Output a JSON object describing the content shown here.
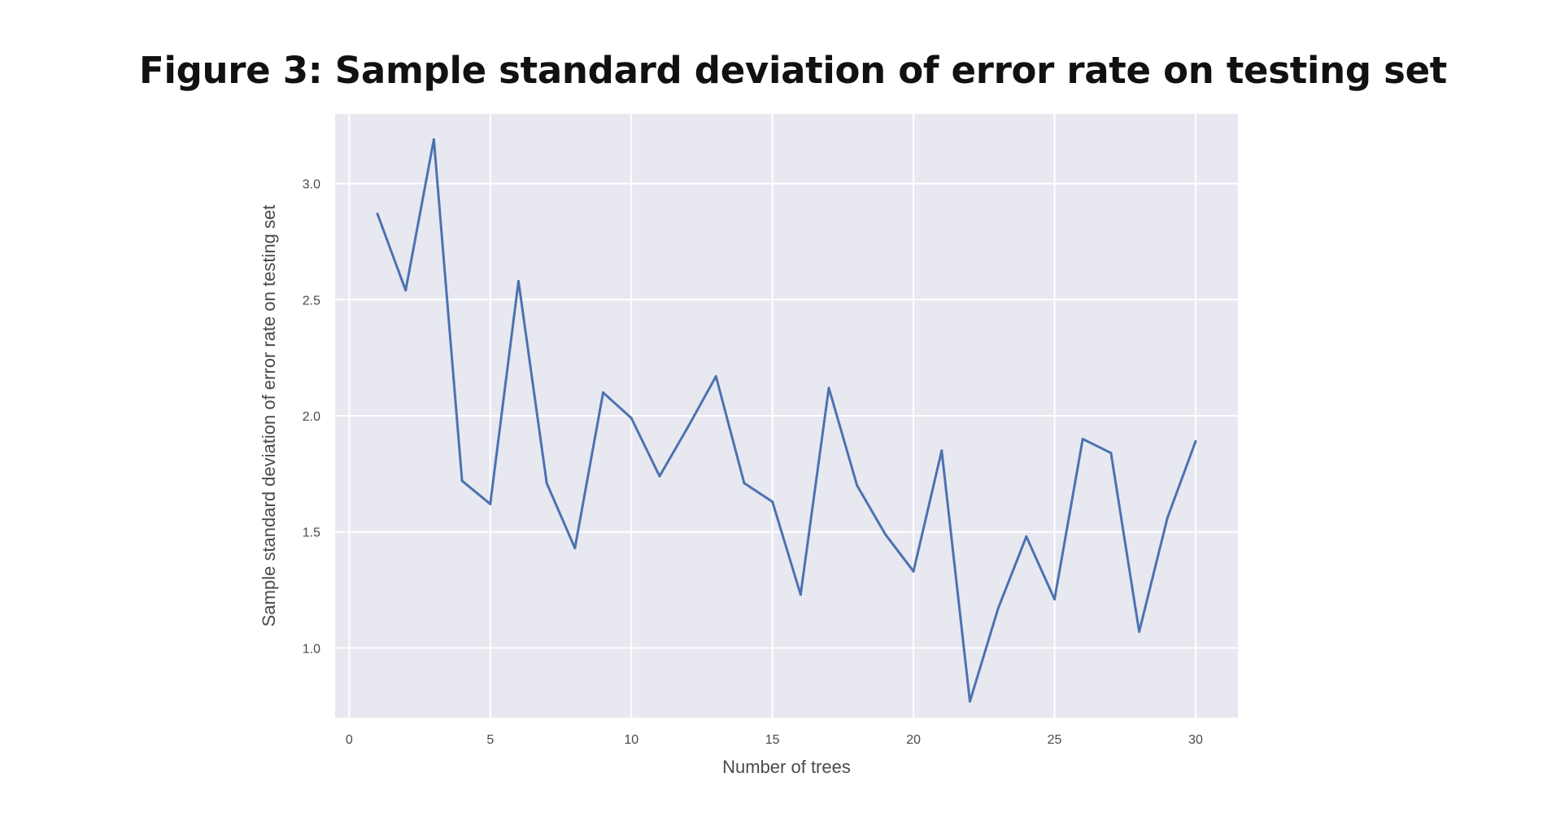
{
  "figure_caption": "Figure 3: Sample standard deviation of error rate on testing set",
  "chart_data": {
    "type": "line",
    "title": "",
    "xlabel": "Number of trees",
    "ylabel": "Sample standard deviation of error rate on testing set",
    "xlim": [
      -0.5,
      31.5
    ],
    "ylim": [
      0.7,
      3.3
    ],
    "xticks": [
      0,
      5,
      10,
      15,
      20,
      25,
      30
    ],
    "yticks": [
      1.0,
      1.5,
      2.0,
      2.5,
      3.0
    ],
    "xtick_labels": [
      "0",
      "5",
      "10",
      "15",
      "20",
      "25",
      "30"
    ],
    "ytick_labels": [
      "1.0",
      "1.5",
      "2.0",
      "2.5",
      "3.0"
    ],
    "grid": true,
    "background_color": "#e8e8f1",
    "grid_color": "#ffffff",
    "line_color": "#4c72b0",
    "series": [
      {
        "x": [
          1,
          2,
          3,
          4,
          5,
          6,
          7,
          8,
          9,
          10,
          11,
          12,
          13,
          14,
          15,
          16,
          17,
          18,
          19,
          20,
          21,
          22,
          23,
          24,
          25,
          26,
          27,
          28,
          29,
          30
        ],
        "values": [
          2.87,
          2.54,
          3.19,
          1.72,
          1.62,
          2.58,
          1.71,
          1.43,
          2.1,
          1.99,
          1.74,
          1.95,
          2.17,
          1.71,
          1.63,
          1.23,
          2.12,
          1.7,
          1.49,
          1.33,
          1.85,
          0.77,
          1.17,
          1.48,
          1.21,
          1.9,
          1.84,
          1.07,
          1.56,
          1.89
        ]
      }
    ]
  }
}
